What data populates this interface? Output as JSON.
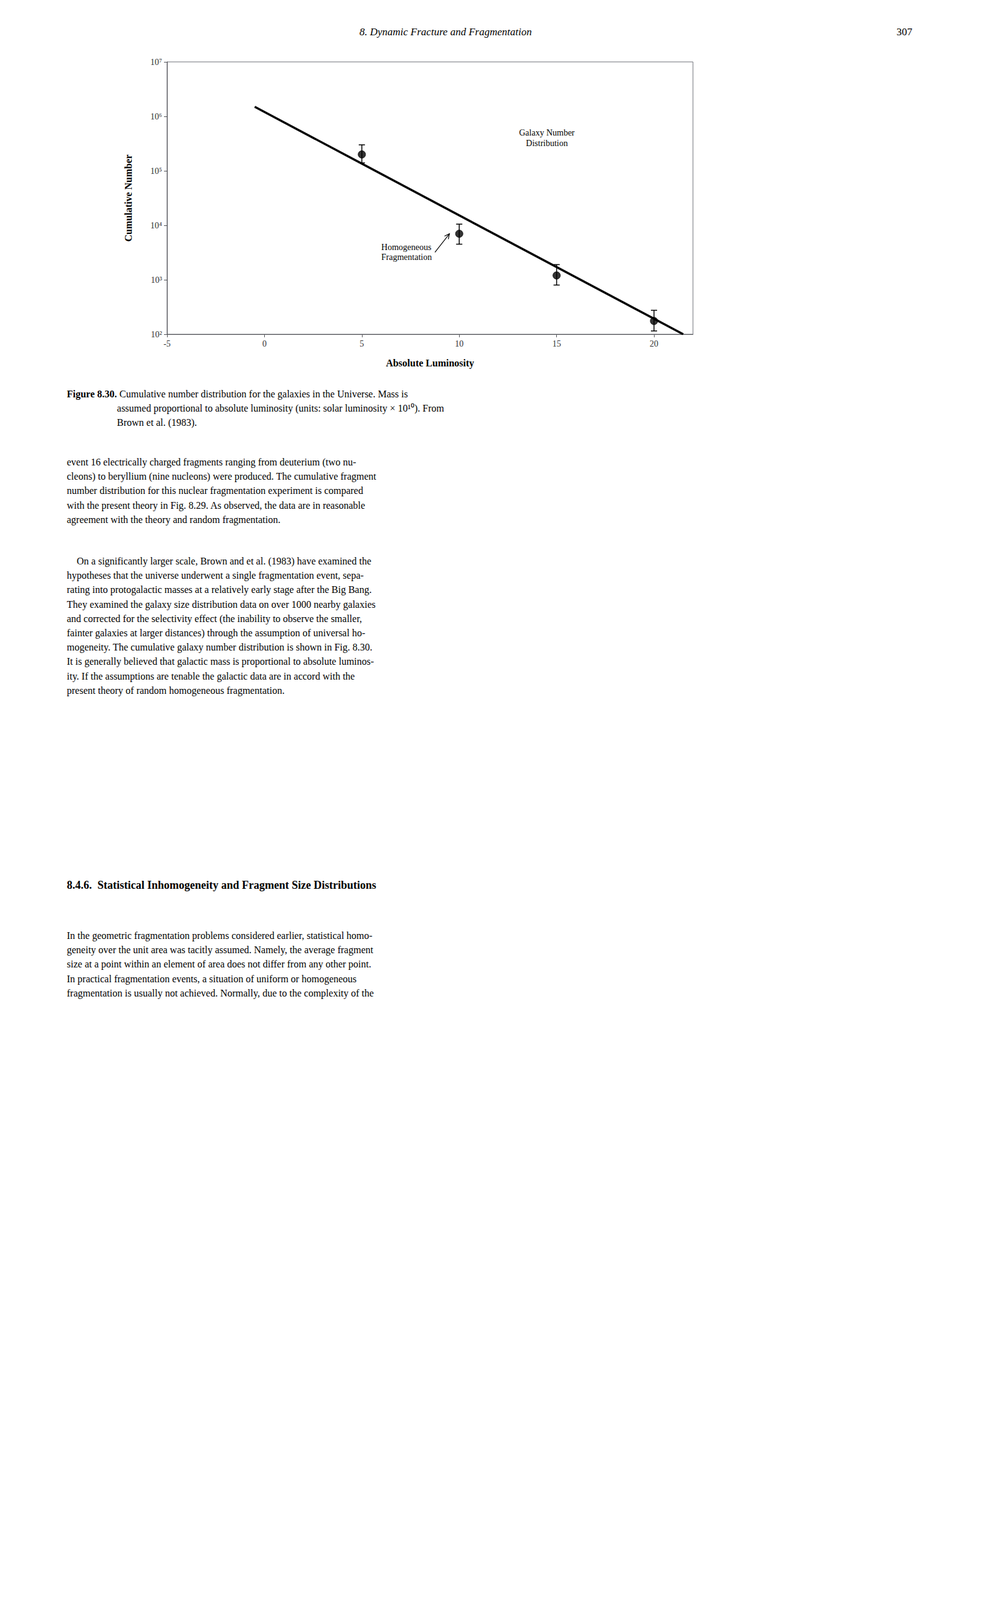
{
  "page_header": "8. Dynamic Fracture and Fragmentation",
  "page_number": "307",
  "chart_data": {
    "type": "scatter",
    "xlabel": "Absolute Luminosity",
    "ylabel": "Cumulative Number",
    "xlim": [
      -5,
      22
    ],
    "ylim": [
      100,
      10000000
    ],
    "xticks": [
      -5,
      0,
      5,
      10,
      15,
      20
    ],
    "yticks": [
      {
        "value": 100,
        "label": "10²"
      },
      {
        "value": 1000,
        "label": "10³"
      },
      {
        "value": 10000,
        "label": "10⁴"
      },
      {
        "value": 100000,
        "label": "10⁵"
      },
      {
        "value": 1000000,
        "label": "10⁶"
      },
      {
        "value": 10000000,
        "label": "10⁷"
      }
    ],
    "log": "y",
    "grid": false,
    "series": [
      {
        "type": "line",
        "color": "#000000",
        "line_style": "solid",
        "x": [
          -0.5,
          21.5
        ],
        "values": [
          1500000,
          100
        ]
      },
      {
        "type": "scatter",
        "color": "#000000",
        "marker": "circle",
        "x": [
          5.0,
          10.0,
          15.0,
          20.0
        ],
        "values": [
          200000,
          7000,
          1200,
          175
        ],
        "yerr_minus": [
          60000,
          2500,
          400,
          60
        ],
        "yerr_plus": [
          100000,
          3500,
          700,
          100
        ]
      }
    ],
    "annotations": [
      {
        "text": "Galaxy Number\nDistribution",
        "x": 14.5,
        "y": 400000
      },
      {
        "text": "Homogeneous\nFragmentation",
        "x": 6.0,
        "y": 3200,
        "arrow_x": 9.5,
        "arrow_y": 7000
      }
    ]
  },
  "caption_label": "Figure 8.30.",
  "caption": " Cumulative number distribution for the galaxies in the Universe. Mass is\nassumed proportional to absolute luminosity (units: solar luminosity × 10¹⁰). From\nBrown et al. (1983).",
  "body": [
    "event 16 electrically charged fragments ranging from deuterium (two nu-\ncleons) to beryllium (nine nucleons) were produced. The cumulative fragment\nnumber distribution for this nuclear fragmentation experiment is compared\nwith the present theory in Fig. 8.29. As observed, the data are in reasonable\nagreement with the theory and random fragmentation.",
    "    On a significantly larger scale, Brown and et al. (1983) have examined the\nhypotheses that the universe underwent a single fragmentation event, sepa-\nrating into protogalactic masses at a relatively early stage after the Big Bang.\nThey examined the galaxy size distribution data on over 1000 nearby galaxies\nand corrected for the selectivity effect (the inability to observe the smaller,\nfainter galaxies at larger distances) through the assumption of universal ho-\nmogeneity. The cumulative galaxy number distribution is shown in Fig. 8.30.\nIt is generally believed that galactic mass is proportional to absolute luminos-\nity. If the assumptions are tenable the galactic data are in accord with the\npresent theory of random homogeneous fragmentation."
  ],
  "section_heading": "8.4.6.  Statistical Inhomogeneity and Fragment Size Distributions",
  "body_after_heading": "In the geometric fragmentation problems considered earlier, statistical homo-\ngeneity over the unit area was tacitly assumed. Namely, the average fragment\nsize at a point within an element of area does not differ from any other point.\nIn practical fragmentation events, a situation of uniform or homogeneous\nfragmentation is usually not achieved. Normally, due to the complexity of the"
}
